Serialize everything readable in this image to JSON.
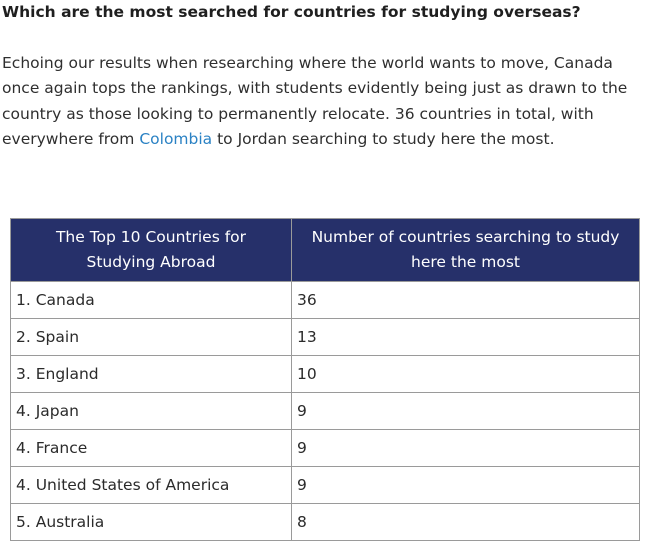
{
  "heading": "Which are the most searched for countries for studying overseas?",
  "intro": {
    "text_before": "Echoing our results when researching where the world wants to move, Canada once again tops the rankings, with students evidently being just as drawn to the country as those looking to permanently relocate. 36 countries in total, with everywhere from ",
    "link": "Colombia",
    "text_after": " to Jordan searching to study here the most."
  },
  "colors": {
    "header_bg": "#26306a",
    "link": "#2b82c4"
  },
  "table": {
    "headers": [
      "The Top 10 Countries for Studying Abroad",
      "Number of countries searching to study here the most"
    ],
    "rows": [
      {
        "country": "1. Canada",
        "count": "36"
      },
      {
        "country": "2. Spain",
        "count": "13"
      },
      {
        "country": "3. England",
        "count": "10"
      },
      {
        "country": "4. Japan",
        "count": "9"
      },
      {
        "country": "4. France",
        "count": "9"
      },
      {
        "country": "4. United States of America",
        "count": "9"
      },
      {
        "country": "5. Australia",
        "count": "8"
      }
    ]
  }
}
